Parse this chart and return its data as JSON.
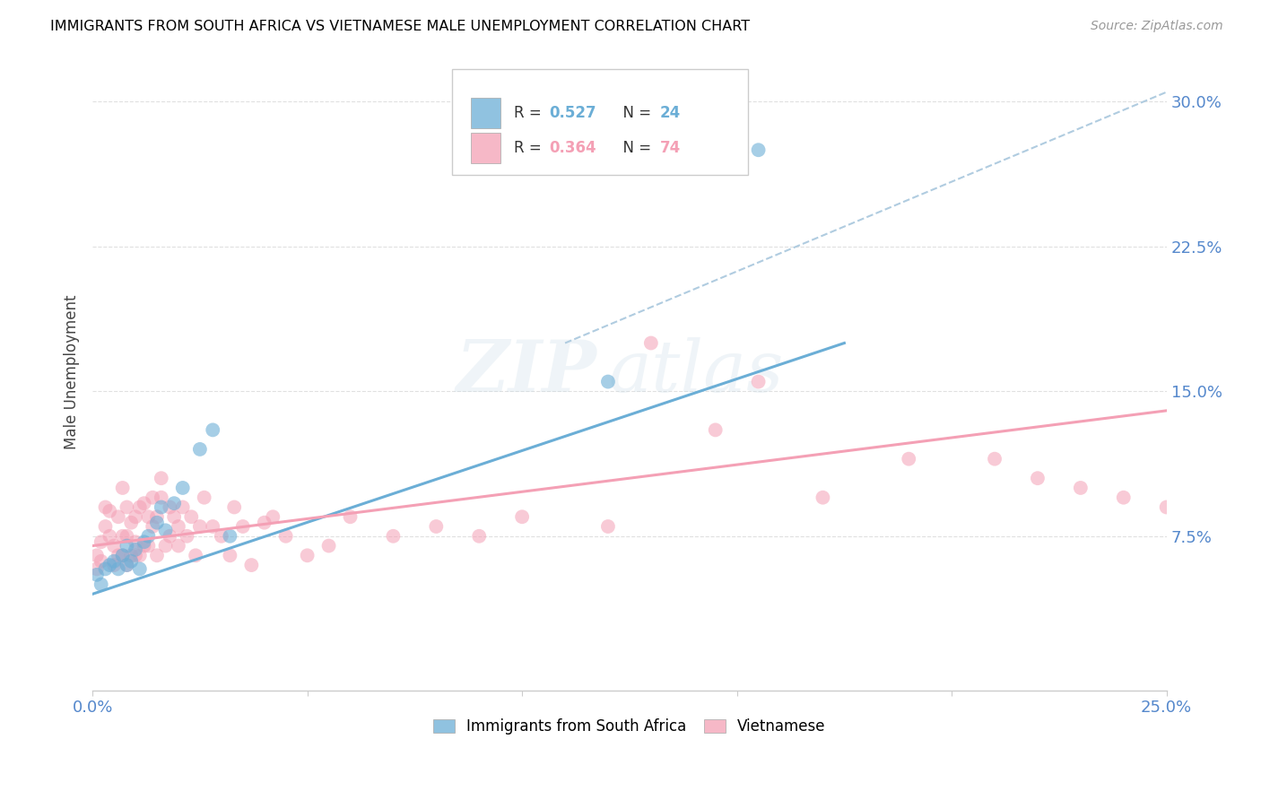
{
  "title": "IMMIGRANTS FROM SOUTH AFRICA VS VIETNAMESE MALE UNEMPLOYMENT CORRELATION CHART",
  "source": "Source: ZipAtlas.com",
  "ylabel": "Male Unemployment",
  "xlim": [
    0.0,
    0.25
  ],
  "ylim": [
    -0.005,
    0.325
  ],
  "blue_R": "0.527",
  "blue_N": "24",
  "pink_R": "0.364",
  "pink_N": "74",
  "blue_color": "#6baed6",
  "pink_color": "#f4a0b5",
  "blue_label": "Immigrants from South Africa",
  "pink_label": "Vietnamese",
  "watermark_zip": "ZIP",
  "watermark_atlas": "atlas",
  "blue_scatter_x": [
    0.001,
    0.002,
    0.003,
    0.004,
    0.005,
    0.006,
    0.007,
    0.008,
    0.008,
    0.009,
    0.01,
    0.011,
    0.012,
    0.013,
    0.015,
    0.016,
    0.017,
    0.019,
    0.021,
    0.025,
    0.028,
    0.032,
    0.12,
    0.155
  ],
  "blue_scatter_y": [
    0.055,
    0.05,
    0.058,
    0.06,
    0.062,
    0.058,
    0.065,
    0.07,
    0.06,
    0.062,
    0.068,
    0.058,
    0.072,
    0.075,
    0.082,
    0.09,
    0.078,
    0.092,
    0.1,
    0.12,
    0.13,
    0.075,
    0.155,
    0.275
  ],
  "pink_scatter_x": [
    0.001,
    0.001,
    0.002,
    0.002,
    0.003,
    0.003,
    0.004,
    0.004,
    0.005,
    0.005,
    0.006,
    0.006,
    0.007,
    0.007,
    0.007,
    0.008,
    0.008,
    0.008,
    0.009,
    0.009,
    0.01,
    0.01,
    0.01,
    0.011,
    0.011,
    0.012,
    0.012,
    0.013,
    0.013,
    0.014,
    0.014,
    0.015,
    0.015,
    0.016,
    0.016,
    0.017,
    0.018,
    0.018,
    0.019,
    0.02,
    0.02,
    0.021,
    0.022,
    0.023,
    0.024,
    0.025,
    0.026,
    0.028,
    0.03,
    0.032,
    0.033,
    0.035,
    0.037,
    0.04,
    0.042,
    0.045,
    0.05,
    0.055,
    0.06,
    0.07,
    0.08,
    0.09,
    0.1,
    0.12,
    0.13,
    0.145,
    0.155,
    0.17,
    0.19,
    0.21,
    0.22,
    0.23,
    0.24,
    0.25
  ],
  "pink_scatter_y": [
    0.058,
    0.065,
    0.062,
    0.072,
    0.08,
    0.09,
    0.075,
    0.088,
    0.06,
    0.07,
    0.065,
    0.085,
    0.1,
    0.065,
    0.075,
    0.075,
    0.09,
    0.06,
    0.082,
    0.065,
    0.072,
    0.085,
    0.065,
    0.09,
    0.065,
    0.07,
    0.092,
    0.085,
    0.07,
    0.095,
    0.08,
    0.065,
    0.085,
    0.095,
    0.105,
    0.07,
    0.09,
    0.075,
    0.085,
    0.08,
    0.07,
    0.09,
    0.075,
    0.085,
    0.065,
    0.08,
    0.095,
    0.08,
    0.075,
    0.065,
    0.09,
    0.08,
    0.06,
    0.082,
    0.085,
    0.075,
    0.065,
    0.07,
    0.085,
    0.075,
    0.08,
    0.075,
    0.085,
    0.08,
    0.175,
    0.13,
    0.155,
    0.095,
    0.115,
    0.115,
    0.105,
    0.1,
    0.095,
    0.09
  ],
  "blue_line_x": [
    0.0,
    0.175
  ],
  "blue_line_y": [
    0.045,
    0.175
  ],
  "pink_line_x": [
    0.0,
    0.25
  ],
  "pink_line_y": [
    0.07,
    0.14
  ],
  "dash_line_x": [
    0.11,
    0.25
  ],
  "dash_line_y": [
    0.175,
    0.305
  ]
}
